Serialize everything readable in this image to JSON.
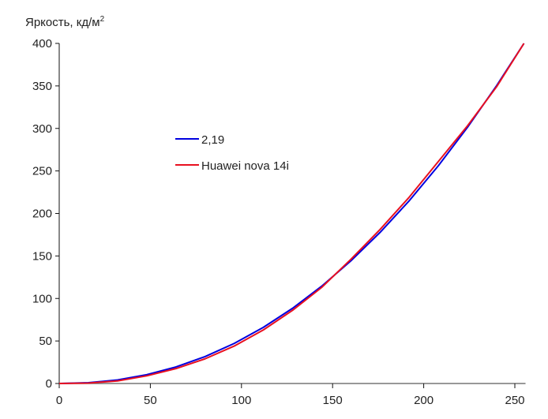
{
  "chart_data": {
    "type": "line",
    "ylabel": "Яркость, кд/м",
    "ylabel_superscript": "2",
    "xlim": [
      0,
      255
    ],
    "ylim": [
      0,
      400
    ],
    "xticks": [
      0,
      50,
      100,
      150,
      200,
      250
    ],
    "yticks": [
      0,
      50,
      100,
      150,
      200,
      250,
      300,
      350,
      400
    ],
    "grid": false,
    "legend_position": "inside-upper-left",
    "x": [
      0,
      16,
      32,
      48,
      64,
      80,
      96,
      112,
      128,
      144,
      160,
      176,
      192,
      208,
      224,
      240,
      255
    ],
    "series": [
      {
        "name": "2,19",
        "color": "#0000e0",
        "values": [
          0,
          0.9,
          4.2,
          10.3,
          19.4,
          31.6,
          47.1,
          66.0,
          88.4,
          114.4,
          144.2,
          177.6,
          214.8,
          256.0,
          301.2,
          350.3,
          400
        ]
      },
      {
        "name": "Huawei nova 14i",
        "color": "#e81020",
        "values": [
          0,
          0.5,
          3,
          9,
          17.5,
          29,
          44,
          63,
          86,
          113,
          146,
          181,
          219,
          261,
          303,
          349,
          400
        ]
      }
    ]
  }
}
